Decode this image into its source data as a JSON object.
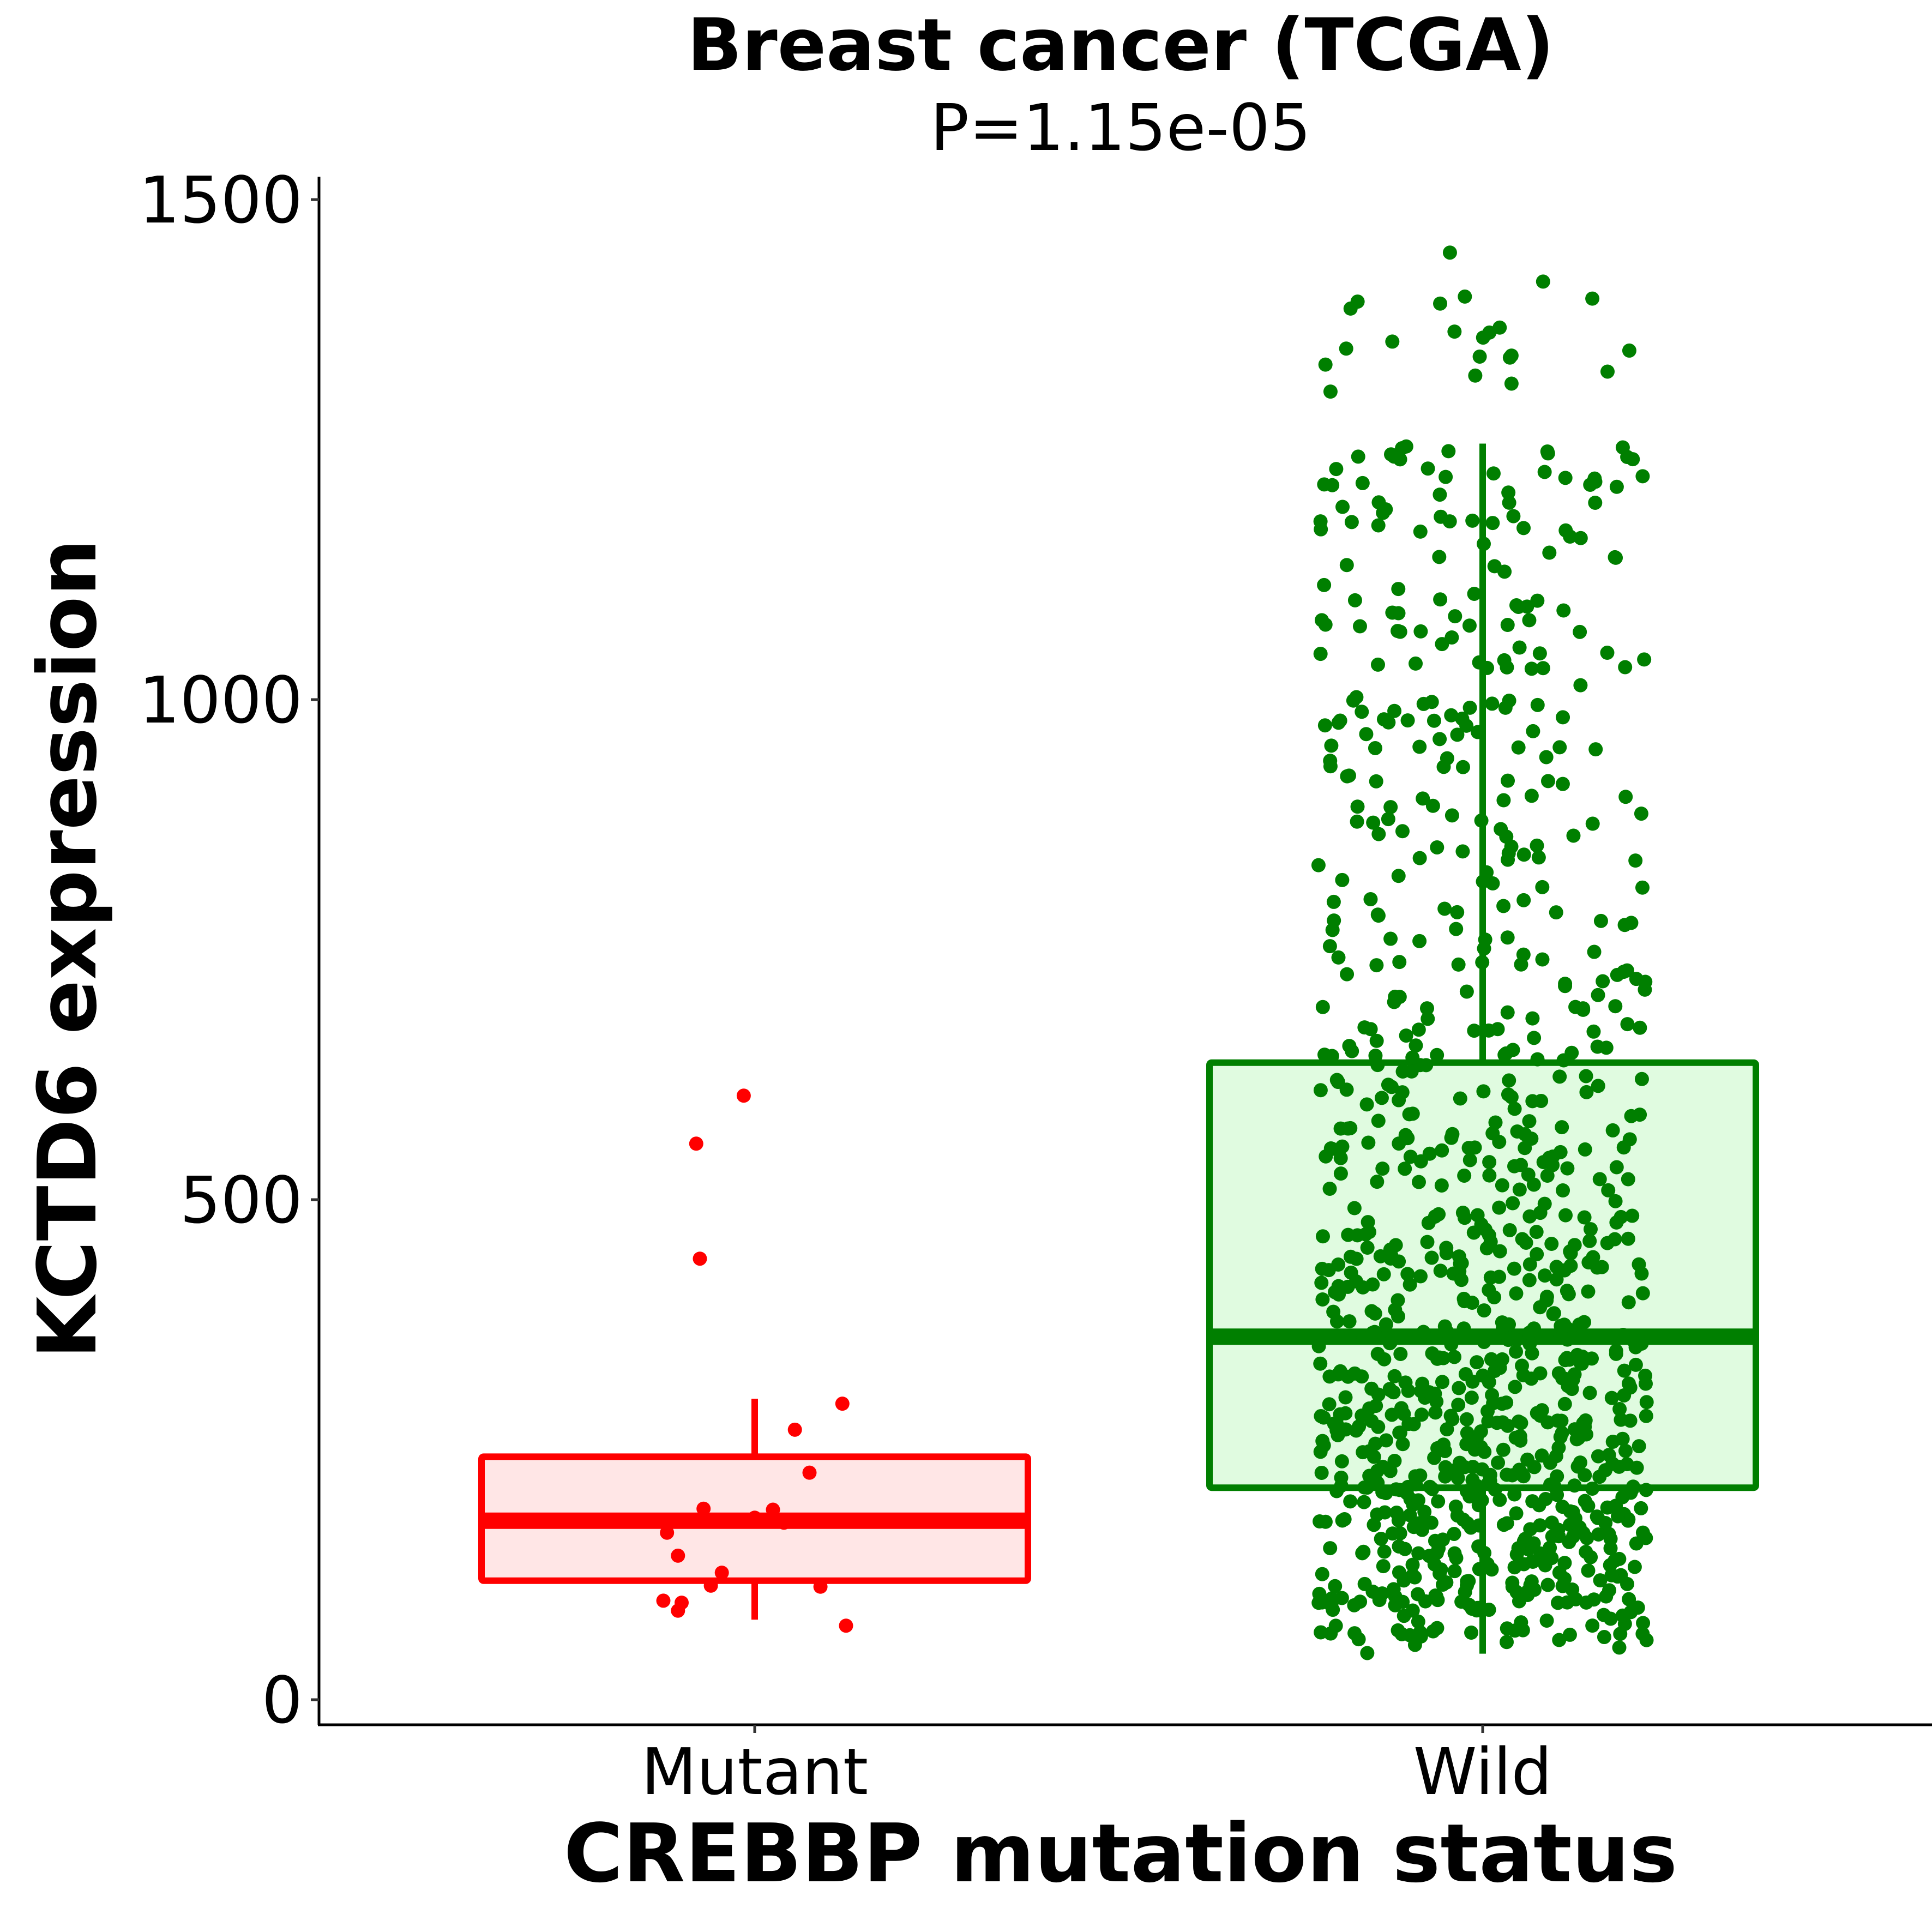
{
  "chart_data": {
    "type": "box",
    "title": "Breast cancer (TCGA)",
    "subtitle": "P=1.15e-05",
    "xlabel": "CREBBP mutation status",
    "ylabel": "KCTD6 expression",
    "categories": [
      "Mutant",
      "Wild"
    ],
    "ylim": [
      -20,
      1550
    ],
    "yticks": [
      0,
      500,
      1000,
      1500
    ],
    "ytick_labels": [
      "0",
      "500",
      "1000",
      "1500"
    ],
    "grid": false,
    "legend": "none",
    "series": [
      {
        "name": "Mutant",
        "color": "#ff0000",
        "fill": "#ffe6e6",
        "box": {
          "lower_whisker": 80,
          "q1": 119,
          "median": 179,
          "q3": 243,
          "upper_whisker": 301
        },
        "points": [
          {
            "jx": -0.03,
            "y": 604
          },
          {
            "jx": -0.16,
            "y": 556
          },
          {
            "jx": -0.15,
            "y": 441
          },
          {
            "jx": 0.24,
            "y": 296
          },
          {
            "jx": 0.11,
            "y": 270
          },
          {
            "jx": 0.15,
            "y": 227
          },
          {
            "jx": -0.14,
            "y": 191
          },
          {
            "jx": 0.05,
            "y": 190
          },
          {
            "jx": 0.0,
            "y": 182
          },
          {
            "jx": 0.08,
            "y": 177
          },
          {
            "jx": -0.24,
            "y": 167
          },
          {
            "jx": -0.21,
            "y": 144
          },
          {
            "jx": -0.09,
            "y": 127
          },
          {
            "jx": -0.12,
            "y": 114
          },
          {
            "jx": 0.18,
            "y": 113
          },
          {
            "jx": -0.25,
            "y": 99
          },
          {
            "jx": -0.2,
            "y": 97
          },
          {
            "jx": -0.21,
            "y": 89
          },
          {
            "jx": 0.25,
            "y": 74
          }
        ]
      },
      {
        "name": "Wild",
        "color": "#007f00",
        "fill": "#e0fbe0",
        "box": {
          "lower_whisker": 46,
          "q1": 212,
          "median": 363,
          "q3": 637,
          "upper_whisker": 1256
        },
        "n_points_approx": 1000,
        "outliers_high": [
          1447,
          1418,
          1403,
          1401,
          1398,
          1396,
          1391,
          1372,
          1368,
          1367,
          1362,
          1358,
          1351,
          1349,
          1344,
          1343,
          1342,
          1335,
          1328,
          1324,
          1316,
          1308
        ]
      }
    ]
  }
}
